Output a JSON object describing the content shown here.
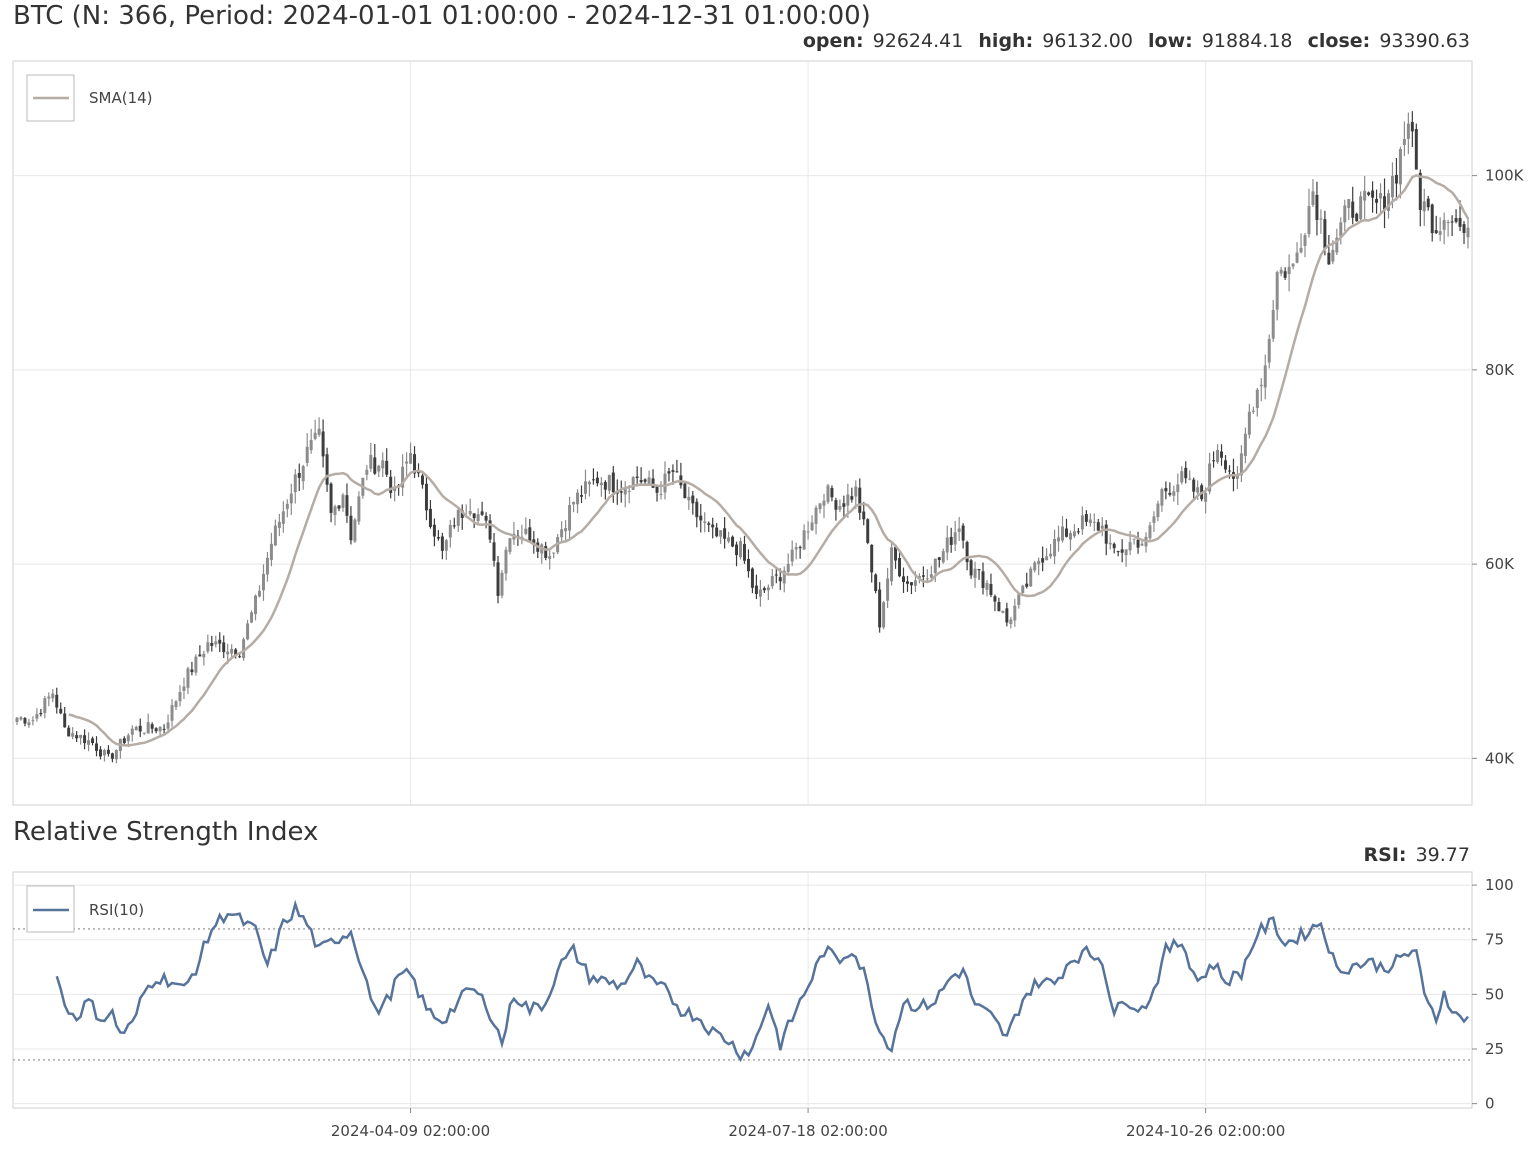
{
  "chart_data": [
    {
      "type": "candlestick",
      "title": "BTC (N: 366, Period: 2024-01-01 01:00:00 - 2024-12-31 01:00:00)",
      "ohlc": [
        {
          "label": "open:",
          "value": "92624.41"
        },
        {
          "label": "high:",
          "value": "96132.00"
        },
        {
          "label": "low:",
          "value": "91884.18"
        },
        {
          "label": "close:",
          "value": "93390.63"
        }
      ],
      "x_start": "2024-01-01",
      "n": 366,
      "ylim": [
        35200,
        111800
      ],
      "y_ticks": [
        40000,
        60000,
        80000,
        100000
      ],
      "y_tick_labels": [
        "40K",
        "60K",
        "80K",
        "100K"
      ],
      "x_ticks": [
        "2024-04-09",
        "2024-07-18",
        "2024-10-26"
      ],
      "x_tick_labels": [
        "2024-04-09 02:00:00",
        "2024-07-18 02:00:00",
        "2024-10-26 02:00:00"
      ],
      "legend": [
        "SMA(14)"
      ],
      "grid": true,
      "colors": {
        "up": "#8c8c8c",
        "down": "#3d3d3d",
        "sma": "#b5aca6"
      },
      "close_anchors": [
        [
          "2024-01-01",
          44200
        ],
        [
          "2024-01-05",
          44000
        ],
        [
          "2024-01-10",
          46800
        ],
        [
          "2024-01-13",
          43000
        ],
        [
          "2024-01-20",
          41600
        ],
        [
          "2024-01-24",
          39900
        ],
        [
          "2024-01-30",
          43000
        ],
        [
          "2024-02-07",
          43200
        ],
        [
          "2024-02-12",
          48000
        ],
        [
          "2024-02-18",
          51800
        ],
        [
          "2024-02-26",
          51200
        ],
        [
          "2024-03-01",
          56000
        ],
        [
          "2024-03-05",
          62200
        ],
        [
          "2024-03-10",
          67800
        ],
        [
          "2024-03-14",
          71500
        ],
        [
          "2024-03-17",
          73000
        ],
        [
          "2024-03-20",
          65000
        ],
        [
          "2024-03-23",
          67500
        ],
        [
          "2024-03-25",
          63000
        ],
        [
          "2024-03-29",
          70200
        ],
        [
          "2024-04-02",
          70500
        ],
        [
          "2024-04-05",
          67000
        ],
        [
          "2024-04-09",
          71500
        ],
        [
          "2024-04-13",
          66000
        ],
        [
          "2024-04-17",
          61000
        ],
        [
          "2024-04-20",
          64500
        ],
        [
          "2024-04-24",
          66300
        ],
        [
          "2024-04-29",
          63200
        ],
        [
          "2024-05-01",
          57500
        ],
        [
          "2024-05-04",
          63500
        ],
        [
          "2024-05-09",
          63000
        ],
        [
          "2024-05-14",
          61000
        ],
        [
          "2024-05-20",
          66500
        ],
        [
          "2024-05-26",
          68800
        ],
        [
          "2024-06-01",
          68000
        ],
        [
          "2024-06-05",
          69000
        ],
        [
          "2024-06-10",
          67500
        ],
        [
          "2024-06-14",
          69500
        ],
        [
          "2024-06-18",
          66000
        ],
        [
          "2024-06-24",
          63000
        ],
        [
          "2024-07-01",
          61500
        ],
        [
          "2024-07-05",
          56500
        ],
        [
          "2024-07-10",
          58500
        ],
        [
          "2024-07-14",
          60600
        ],
        [
          "2024-07-18",
          64000
        ],
        [
          "2024-07-22",
          67500
        ],
        [
          "2024-07-26",
          66200
        ],
        [
          "2024-07-30",
          67500
        ],
        [
          "2024-08-02",
          62000
        ],
        [
          "2024-08-05",
          54000
        ],
        [
          "2024-08-08",
          61000
        ],
        [
          "2024-08-12",
          58000
        ],
        [
          "2024-08-16",
          59000
        ],
        [
          "2024-08-20",
          60500
        ],
        [
          "2024-08-25",
          64200
        ],
        [
          "2024-08-28",
          59500
        ],
        [
          "2024-09-01",
          58000
        ],
        [
          "2024-09-06",
          54000
        ],
        [
          "2024-09-10",
          57000
        ],
        [
          "2024-09-14",
          60500
        ],
        [
          "2024-09-20",
          63000
        ],
        [
          "2024-09-25",
          64200
        ],
        [
          "2024-09-30",
          63800
        ],
        [
          "2024-10-03",
          60800
        ],
        [
          "2024-10-08",
          62500
        ],
        [
          "2024-10-11",
          62200
        ],
        [
          "2024-10-15",
          67500
        ],
        [
          "2024-10-20",
          68700
        ],
        [
          "2024-10-25",
          66800
        ],
        [
          "2024-10-29",
          72300
        ],
        [
          "2024-11-03",
          68300
        ],
        [
          "2024-11-06",
          75600
        ],
        [
          "2024-11-10",
          80500
        ],
        [
          "2024-11-13",
          90000
        ],
        [
          "2024-11-17",
          90500
        ],
        [
          "2024-11-22",
          98500
        ],
        [
          "2024-11-26",
          92000
        ],
        [
          "2024-12-01",
          96500
        ],
        [
          "2024-12-05",
          97000
        ],
        [
          "2024-12-09",
          97000
        ],
        [
          "2024-12-13",
          100500
        ],
        [
          "2024-12-16",
          106000
        ],
        [
          "2024-12-19",
          97500
        ],
        [
          "2024-12-23",
          94800
        ],
        [
          "2024-12-26",
          96500
        ],
        [
          "2024-12-31",
          93390
        ]
      ]
    },
    {
      "type": "line",
      "title": "Relative Strength Index",
      "value_label": "RSI:",
      "value": "39.77",
      "ylim": [
        -2,
        106
      ],
      "y_ticks": [
        0,
        25,
        50,
        75,
        100
      ],
      "y_tick_labels": [
        "0",
        "25",
        "50",
        "75",
        "100"
      ],
      "reference_lines": [
        20,
        80
      ],
      "legend": [
        "RSI(10)"
      ],
      "grid": true,
      "colors": {
        "rsi": "#56739b",
        "ref": "#aaaaaa"
      },
      "rsi_anchors": [
        [
          "2024-01-11",
          61
        ],
        [
          "2024-01-13",
          44
        ],
        [
          "2024-01-16",
          40
        ],
        [
          "2024-01-19",
          47
        ],
        [
          "2024-01-22",
          39
        ],
        [
          "2024-01-25",
          41
        ],
        [
          "2024-01-27",
          32
        ],
        [
          "2024-01-30",
          36
        ],
        [
          "2024-02-02",
          51
        ],
        [
          "2024-02-05",
          58
        ],
        [
          "2024-02-09",
          56
        ],
        [
          "2024-02-12",
          52
        ],
        [
          "2024-02-15",
          62
        ],
        [
          "2024-02-19",
          80
        ],
        [
          "2024-02-23",
          88
        ],
        [
          "2024-02-27",
          83
        ],
        [
          "2024-03-01",
          79
        ],
        [
          "2024-03-04",
          63
        ],
        [
          "2024-03-08",
          82
        ],
        [
          "2024-03-11",
          89
        ],
        [
          "2024-03-14",
          82
        ],
        [
          "2024-03-17",
          70
        ],
        [
          "2024-03-21",
          75
        ],
        [
          "2024-03-25",
          79
        ],
        [
          "2024-03-28",
          62
        ],
        [
          "2024-03-31",
          42
        ],
        [
          "2024-04-03",
          47
        ],
        [
          "2024-04-06",
          58
        ],
        [
          "2024-04-09",
          59
        ],
        [
          "2024-04-13",
          43
        ],
        [
          "2024-04-17",
          38
        ],
        [
          "2024-04-20",
          44
        ],
        [
          "2024-04-24",
          53
        ],
        [
          "2024-04-28",
          46
        ],
        [
          "2024-05-02",
          28
        ],
        [
          "2024-05-05",
          50
        ],
        [
          "2024-05-09",
          43
        ],
        [
          "2024-05-13",
          46
        ],
        [
          "2024-05-16",
          62
        ],
        [
          "2024-05-20",
          70
        ],
        [
          "2024-05-24",
          58
        ],
        [
          "2024-05-28",
          56
        ],
        [
          "2024-06-01",
          54
        ],
        [
          "2024-06-05",
          64
        ],
        [
          "2024-06-08",
          56
        ],
        [
          "2024-06-12",
          52
        ],
        [
          "2024-06-16",
          43
        ],
        [
          "2024-06-20",
          40
        ],
        [
          "2024-06-24",
          33
        ],
        [
          "2024-06-28",
          29
        ],
        [
          "2024-07-01",
          23
        ],
        [
          "2024-07-04",
          25
        ],
        [
          "2024-07-08",
          46
        ],
        [
          "2024-07-11",
          27
        ],
        [
          "2024-07-14",
          39
        ],
        [
          "2024-07-18",
          54
        ],
        [
          "2024-07-22",
          70
        ],
        [
          "2024-07-26",
          66
        ],
        [
          "2024-07-29",
          71
        ],
        [
          "2024-08-01",
          60
        ],
        [
          "2024-08-05",
          33
        ],
        [
          "2024-08-08",
          26
        ],
        [
          "2024-08-11",
          47
        ],
        [
          "2024-08-15",
          44
        ],
        [
          "2024-08-19",
          47
        ],
        [
          "2024-08-23",
          58
        ],
        [
          "2024-08-26",
          61
        ],
        [
          "2024-08-29",
          45
        ],
        [
          "2024-09-02",
          40
        ],
        [
          "2024-09-06",
          30
        ],
        [
          "2024-09-10",
          48
        ],
        [
          "2024-09-14",
          56
        ],
        [
          "2024-09-18",
          55
        ],
        [
          "2024-09-22",
          66
        ],
        [
          "2024-09-26",
          69
        ],
        [
          "2024-09-30",
          66
        ],
        [
          "2024-10-03",
          41
        ],
        [
          "2024-10-06",
          48
        ],
        [
          "2024-10-10",
          43
        ],
        [
          "2024-10-13",
          52
        ],
        [
          "2024-10-16",
          70
        ],
        [
          "2024-10-20",
          74
        ],
        [
          "2024-10-24",
          56
        ],
        [
          "2024-10-28",
          64
        ],
        [
          "2024-10-31",
          56
        ],
        [
          "2024-11-04",
          60
        ],
        [
          "2024-11-08",
          78
        ],
        [
          "2024-11-12",
          83
        ],
        [
          "2024-11-15",
          73
        ],
        [
          "2024-11-20",
          78
        ],
        [
          "2024-11-24",
          83
        ],
        [
          "2024-11-28",
          61
        ],
        [
          "2024-12-02",
          63
        ],
        [
          "2024-12-06",
          65
        ],
        [
          "2024-12-10",
          62
        ],
        [
          "2024-12-14",
          66
        ],
        [
          "2024-12-18",
          71
        ],
        [
          "2024-12-20",
          48
        ],
        [
          "2024-12-23",
          39
        ],
        [
          "2024-12-25",
          51
        ],
        [
          "2024-12-28",
          40
        ],
        [
          "2024-12-31",
          39.77
        ]
      ]
    }
  ]
}
